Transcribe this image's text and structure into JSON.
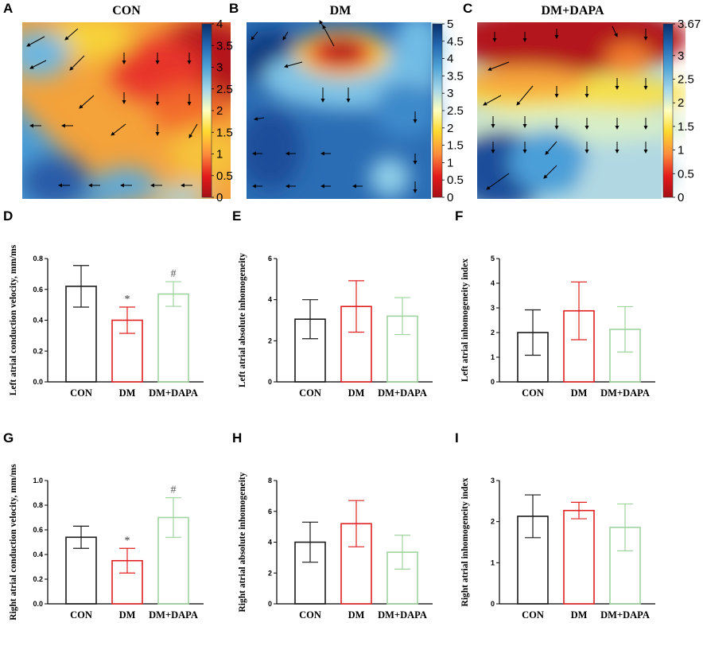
{
  "colors": {
    "CON": "#1a1a1a",
    "DM": "#e02020",
    "DM+DAPA": "#9fd39f",
    "axis": "#000000"
  },
  "colorscale": [
    "#a50f15",
    "#e31a1c",
    "#fd8d3c",
    "#ffd92f",
    "#ffffbf",
    "#a6d7e8",
    "#4fa3d6",
    "#2166b0",
    "#08306b"
  ],
  "maps": [
    {
      "panel": "A",
      "title": "CON",
      "colorbar_ticks": [
        "0",
        "0.5",
        "1",
        "1.5",
        "2",
        "2.5",
        "3",
        "3.5",
        "4"
      ],
      "vmin": 0,
      "vmax": 4
    },
    {
      "panel": "B",
      "title": "DM",
      "colorbar_ticks": [
        "0",
        "0.5",
        "1",
        "1.5",
        "2",
        "2.5",
        "3",
        "3.5",
        "4",
        "4.5",
        "5"
      ],
      "vmin": 0,
      "vmax": 5
    },
    {
      "panel": "C",
      "title": "DM+DAPA",
      "colorbar_ticks": [
        "0",
        "0.5",
        "1",
        "1.5",
        "2",
        "2.5",
        "3",
        "3.67"
      ],
      "vmin": 0,
      "vmax": 3.67
    }
  ],
  "chart_data": [
    {
      "panel": "D",
      "type": "bar",
      "categories": [
        "CON",
        "DM",
        "DM+DAPA"
      ],
      "values": [
        0.62,
        0.4,
        0.57
      ],
      "error": [
        0.135,
        0.085,
        0.08
      ],
      "significance": [
        "",
        "*",
        "#"
      ],
      "ylabel": "Left atrial conduction velocity, mm/ms",
      "ylim": [
        0,
        0.8
      ],
      "yticks": [
        "0.0",
        "0.2",
        "0.4",
        "0.6",
        "0.8"
      ]
    },
    {
      "panel": "E",
      "type": "bar",
      "categories": [
        "CON",
        "DM",
        "DM+DAPA"
      ],
      "values": [
        3.05,
        3.67,
        3.2
      ],
      "error": [
        0.95,
        1.25,
        0.9
      ],
      "significance": [
        "",
        "",
        ""
      ],
      "ylabel": "Left atrial absolute inhomogeneity",
      "ylim": [
        0,
        6
      ],
      "yticks": [
        "0",
        "2",
        "4",
        "6"
      ]
    },
    {
      "panel": "F",
      "type": "bar",
      "categories": [
        "CON",
        "DM",
        "DM+DAPA"
      ],
      "values": [
        2.0,
        2.88,
        2.13
      ],
      "error": [
        0.92,
        1.17,
        0.92
      ],
      "significance": [
        "",
        "",
        ""
      ],
      "ylabel": "Left atrial inhomogeneity index",
      "ylim": [
        0,
        5
      ],
      "yticks": [
        "0",
        "1",
        "2",
        "3",
        "4",
        "5"
      ]
    },
    {
      "panel": "G",
      "type": "bar",
      "categories": [
        "CON",
        "DM",
        "DM+DAPA"
      ],
      "values": [
        0.54,
        0.35,
        0.7
      ],
      "error": [
        0.09,
        0.1,
        0.16
      ],
      "significance": [
        "",
        "*",
        "#"
      ],
      "ylabel": "Right atrial conduction velocity, mm/ms",
      "ylim": [
        0,
        1.0
      ],
      "yticks": [
        "0.0",
        "0.2",
        "0.4",
        "0.6",
        "0.8",
        "1.0"
      ]
    },
    {
      "panel": "H",
      "type": "bar",
      "categories": [
        "CON",
        "DM",
        "DM+DAPA"
      ],
      "values": [
        4.0,
        5.2,
        3.35
      ],
      "error": [
        1.3,
        1.5,
        1.1
      ],
      "significance": [
        "",
        "",
        ""
      ],
      "ylabel": "Right atrial absolute inhomogeneity",
      "ylim": [
        0,
        8
      ],
      "yticks": [
        "0",
        "2",
        "4",
        "6",
        "8"
      ]
    },
    {
      "panel": "I",
      "type": "bar",
      "categories": [
        "CON",
        "DM",
        "DM+DAPA"
      ],
      "values": [
        2.13,
        2.27,
        1.86
      ],
      "error": [
        0.52,
        0.2,
        0.57
      ],
      "significance": [
        "",
        "",
        ""
      ],
      "ylabel": "Right atrial inhomogeneity index",
      "ylim": [
        0,
        3
      ],
      "yticks": [
        "0",
        "1",
        "2",
        "3"
      ]
    }
  ]
}
